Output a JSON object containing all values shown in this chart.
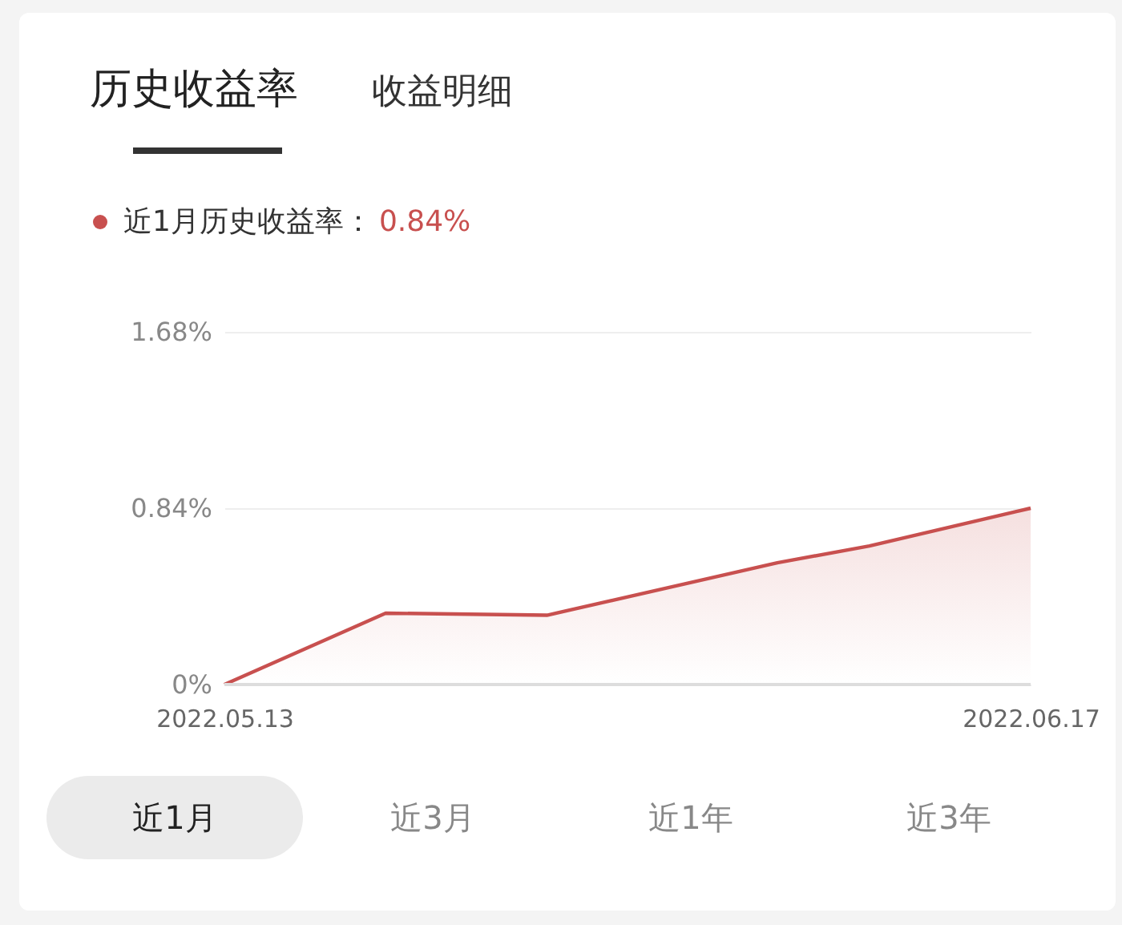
{
  "chart_data": {
    "type": "area",
    "title": "历史收益率",
    "annotations": [
      "收益明细",
      "0.84%",
      "近1月",
      "近3月",
      "近1年",
      "近3年"
    ],
    "x": [
      "2022-05-13",
      "2022-05-20",
      "2022-05-27",
      "2022-06-06",
      "2022-06-10",
      "2022-06-17"
    ],
    "series": [
      {
        "name": "近1月历史收益率：",
        "color": "#c8504f",
        "values": [
          0,
          0.34,
          0.33,
          0.58,
          0.66,
          0.84
        ]
      }
    ],
    "xlim": [
      "2022-05-13",
      "2022-06-17"
    ],
    "xticks": [
      {
        "value": "2022-05-13",
        "label": "2022.05.13"
      },
      {
        "value": "2022-06-17",
        "label": "2022.06.17"
      }
    ],
    "ylim": [
      0,
      1.68
    ],
    "yticks": [
      {
        "value": 0,
        "label": "0%"
      },
      {
        "value": 0.84,
        "label": "0.84%"
      },
      {
        "value": 1.68,
        "label": "1.68%"
      }
    ],
    "grid": "y",
    "legend": "top left",
    "marker": "none",
    "line_style": "solid"
  }
}
